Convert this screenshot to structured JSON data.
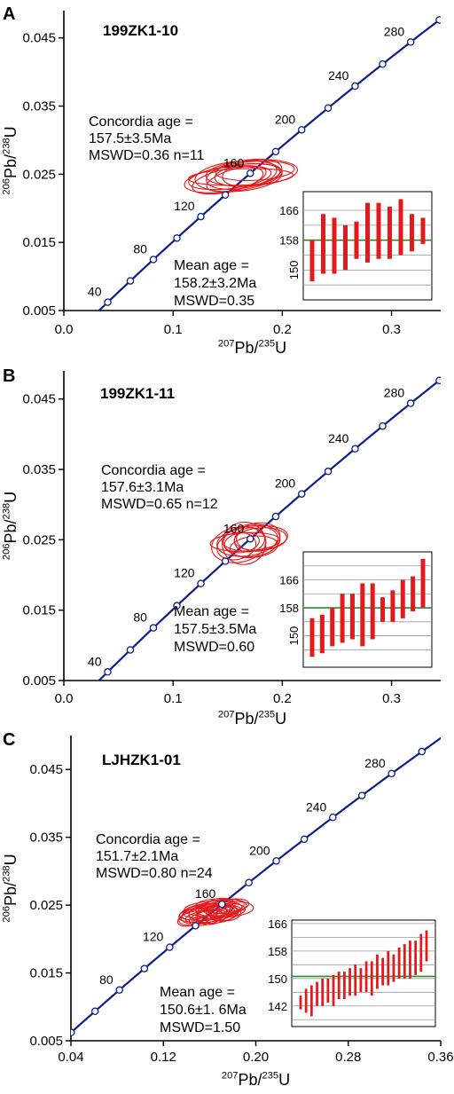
{
  "colors": {
    "concordia": "#0a1e8c",
    "ellipse": "#e31a1c",
    "bar": "#e31a1c",
    "mean_line": "#2e8b2e",
    "grid": "#999999",
    "axis": "#000000"
  },
  "panels": [
    {
      "letter": "A",
      "sample": "199ZK1-10",
      "xlabel": "207Pb/235U",
      "ylabel": "206Pb/238U",
      "concordia_text": [
        "Concordia age =",
        "157.5±3.5Ma",
        "MSWD=0.36 n=11"
      ],
      "mean_text": [
        "Mean age =",
        "158.2±3.2Ma",
        "MSWD=0.35"
      ]
    },
    {
      "letter": "B",
      "sample": "199ZK1-11",
      "xlabel": "207Pb/235U",
      "ylabel": "206Pb/238U",
      "concordia_text": [
        "Concordia age =",
        "157.6±3.1Ma",
        "MSWD=0.65 n=12"
      ],
      "mean_text": [
        "Mean age =",
        "157.5±3.5Ma",
        "MSWD=0.60"
      ]
    },
    {
      "letter": "C",
      "sample": "LJHZK1-01",
      "xlabel": "207Pb/235U",
      "ylabel": "206Pb/238U",
      "concordia_text": [
        "Concordia age =",
        "151.7±2.1Ma",
        "MSWD=0.80 n=24"
      ],
      "mean_text": [
        "Mean age =",
        "150.6±1. 6Ma",
        "MSWD=1.50"
      ]
    }
  ],
  "chart_data": [
    {
      "type": "scatter",
      "title": "199ZK1-10",
      "xlabel": "207Pb/235U",
      "ylabel": "206Pb/238U",
      "xlim": [
        0.0,
        0.345
      ],
      "ylim": [
        0.005,
        0.049
      ],
      "xticks": [
        0.0,
        0.1,
        0.2,
        0.3
      ],
      "xtick_labels": [
        "0.0",
        "0.1",
        "0.2",
        "0.3"
      ],
      "yticks": [
        0.005,
        0.015,
        0.025,
        0.035,
        0.045
      ],
      "ytick_labels": [
        "0.005",
        "0.015",
        "0.025",
        "0.035",
        "0.045"
      ],
      "concordia_age_labels": [
        40,
        80,
        120,
        160,
        200,
        240,
        280
      ],
      "concordia_age_markers": [
        40,
        60,
        80,
        100,
        120,
        140,
        160,
        180,
        200,
        220,
        240,
        260,
        280,
        300
      ],
      "ellipses": [
        {
          "x": 0.155,
          "y": 0.0244,
          "rx": 0.045,
          "ry": 0.0019,
          "angle": 8
        },
        {
          "x": 0.16,
          "y": 0.0247,
          "rx": 0.04,
          "ry": 0.0022,
          "angle": 5
        },
        {
          "x": 0.165,
          "y": 0.025,
          "rx": 0.035,
          "ry": 0.002,
          "angle": 10
        },
        {
          "x": 0.172,
          "y": 0.0252,
          "rx": 0.042,
          "ry": 0.0019,
          "angle": 4
        },
        {
          "x": 0.15,
          "y": 0.0241,
          "rx": 0.033,
          "ry": 0.0017,
          "angle": 12
        },
        {
          "x": 0.168,
          "y": 0.0249,
          "rx": 0.03,
          "ry": 0.0016,
          "angle": 6
        },
        {
          "x": 0.158,
          "y": 0.0243,
          "rx": 0.028,
          "ry": 0.0015,
          "angle": 15
        },
        {
          "x": 0.175,
          "y": 0.0255,
          "rx": 0.036,
          "ry": 0.0014,
          "angle": 3
        },
        {
          "x": 0.162,
          "y": 0.0246,
          "rx": 0.048,
          "ry": 0.0012,
          "angle": 2
        },
        {
          "x": 0.17,
          "y": 0.0251,
          "rx": 0.025,
          "ry": 0.0018,
          "angle": 9
        },
        {
          "x": 0.152,
          "y": 0.0245,
          "rx": 0.038,
          "ry": 0.0016,
          "angle": 7
        }
      ],
      "inset": {
        "type": "bar",
        "ylim": [
          142,
          171
        ],
        "yticks": [
          150,
          158,
          166
        ],
        "mean": 158,
        "grid": [
          146,
          150,
          154,
          158,
          162,
          166
        ],
        "bars": [
          [
            147,
            158
          ],
          [
            149,
            165
          ],
          [
            149,
            164
          ],
          [
            150,
            162
          ],
          [
            153,
            163
          ],
          [
            152,
            168
          ],
          [
            153,
            168
          ],
          [
            153,
            167
          ],
          [
            154,
            169
          ],
          [
            155,
            165
          ],
          [
            157,
            164
          ]
        ]
      }
    },
    {
      "type": "scatter",
      "title": "199ZK1-11",
      "xlabel": "207Pb/235U",
      "ylabel": "206Pb/238U",
      "xlim": [
        0.0,
        0.345
      ],
      "ylim": [
        0.005,
        0.049
      ],
      "xticks": [
        0.0,
        0.1,
        0.2,
        0.3
      ],
      "xtick_labels": [
        "0.0",
        "0.1",
        "0.2",
        "0.3"
      ],
      "yticks": [
        0.005,
        0.015,
        0.025,
        0.035,
        0.045
      ],
      "ytick_labels": [
        "0.005",
        "0.015",
        "0.025",
        "0.035",
        "0.045"
      ],
      "concordia_age_labels": [
        40,
        80,
        120,
        160,
        200,
        240,
        280
      ],
      "concordia_age_markers": [
        40,
        60,
        80,
        100,
        120,
        140,
        160,
        180,
        200,
        220,
        240,
        260,
        280,
        300
      ],
      "ellipses": [
        {
          "x": 0.16,
          "y": 0.0243,
          "rx": 0.025,
          "ry": 0.0025,
          "angle": 10
        },
        {
          "x": 0.168,
          "y": 0.0248,
          "rx": 0.028,
          "ry": 0.0021,
          "angle": 8
        },
        {
          "x": 0.175,
          "y": 0.0252,
          "rx": 0.03,
          "ry": 0.0018,
          "angle": 5
        },
        {
          "x": 0.165,
          "y": 0.0245,
          "rx": 0.02,
          "ry": 0.003,
          "angle": 15
        },
        {
          "x": 0.18,
          "y": 0.0251,
          "rx": 0.024,
          "ry": 0.0016,
          "angle": 4
        },
        {
          "x": 0.158,
          "y": 0.0241,
          "rx": 0.018,
          "ry": 0.0019,
          "angle": 12
        },
        {
          "x": 0.172,
          "y": 0.0249,
          "rx": 0.026,
          "ry": 0.0023,
          "angle": 6
        },
        {
          "x": 0.163,
          "y": 0.0246,
          "rx": 0.016,
          "ry": 0.0014,
          "angle": 9
        },
        {
          "x": 0.178,
          "y": 0.0254,
          "rx": 0.02,
          "ry": 0.002,
          "angle": 7
        },
        {
          "x": 0.166,
          "y": 0.0247,
          "rx": 0.032,
          "ry": 0.0013,
          "angle": 3
        },
        {
          "x": 0.17,
          "y": 0.025,
          "rx": 0.014,
          "ry": 0.0017,
          "angle": 11
        },
        {
          "x": 0.174,
          "y": 0.024,
          "rx": 0.022,
          "ry": 0.0015,
          "angle": 6
        }
      ],
      "inset": {
        "type": "bar",
        "ylim": [
          141,
          174
        ],
        "yticks": [
          150,
          158,
          166
        ],
        "mean": 158,
        "grid": [
          146,
          150,
          154,
          158,
          162,
          166,
          170
        ],
        "bars": [
          [
            144,
            155
          ],
          [
            145,
            156
          ],
          [
            147,
            158
          ],
          [
            148,
            162
          ],
          [
            149,
            162
          ],
          [
            147,
            165
          ],
          [
            149,
            165
          ],
          [
            154,
            161
          ],
          [
            154,
            163
          ],
          [
            155,
            166
          ],
          [
            157,
            167
          ],
          [
            158,
            172
          ]
        ]
      }
    },
    {
      "type": "scatter",
      "title": "LJHZK1-01",
      "xlabel": "207Pb/235U",
      "ylabel": "206Pb/238U",
      "xlim": [
        0.04,
        0.36
      ],
      "ylim": [
        0.005,
        0.05
      ],
      "xticks": [
        0.04,
        0.12,
        0.2,
        0.28,
        0.36
      ],
      "xtick_labels": [
        "0.04",
        "0.12",
        "0.20",
        "0.28",
        "0.36"
      ],
      "yticks": [
        0.005,
        0.015,
        0.025,
        0.035,
        0.045
      ],
      "ytick_labels": [
        "0.005",
        "0.015",
        "0.025",
        "0.035",
        "0.045"
      ],
      "concordia_age_labels": [
        80,
        120,
        160,
        200,
        240,
        280
      ],
      "concordia_age_markers": [
        40,
        60,
        80,
        100,
        120,
        140,
        160,
        180,
        200,
        220,
        240,
        260,
        280,
        300
      ],
      "ellipses": [
        {
          "x": 0.155,
          "y": 0.0236,
          "rx": 0.02,
          "ry": 0.0013,
          "angle": 10
        },
        {
          "x": 0.16,
          "y": 0.024,
          "rx": 0.018,
          "ry": 0.0012,
          "angle": 8
        },
        {
          "x": 0.165,
          "y": 0.0243,
          "rx": 0.016,
          "ry": 0.0011,
          "angle": 12
        },
        {
          "x": 0.17,
          "y": 0.0246,
          "rx": 0.022,
          "ry": 0.0012,
          "angle": 6
        },
        {
          "x": 0.175,
          "y": 0.0248,
          "rx": 0.015,
          "ry": 0.001,
          "angle": 9
        },
        {
          "x": 0.15,
          "y": 0.0233,
          "rx": 0.017,
          "ry": 0.0011,
          "angle": 14
        },
        {
          "x": 0.158,
          "y": 0.0238,
          "rx": 0.024,
          "ry": 0.001,
          "angle": 5
        },
        {
          "x": 0.162,
          "y": 0.0235,
          "rx": 0.014,
          "ry": 0.0013,
          "angle": 11
        },
        {
          "x": 0.168,
          "y": 0.024,
          "rx": 0.019,
          "ry": 0.0009,
          "angle": 7
        },
        {
          "x": 0.178,
          "y": 0.0244,
          "rx": 0.02,
          "ry": 0.0011,
          "angle": 4
        },
        {
          "x": 0.145,
          "y": 0.023,
          "rx": 0.013,
          "ry": 0.001,
          "angle": 15
        },
        {
          "x": 0.153,
          "y": 0.0241,
          "rx": 0.016,
          "ry": 0.0009,
          "angle": 8
        },
        {
          "x": 0.172,
          "y": 0.0239,
          "rx": 0.012,
          "ry": 0.0012,
          "angle": 10
        },
        {
          "x": 0.163,
          "y": 0.0245,
          "rx": 0.025,
          "ry": 0.0011,
          "angle": 3
        },
        {
          "x": 0.157,
          "y": 0.0231,
          "rx": 0.015,
          "ry": 0.001,
          "angle": 12
        },
        {
          "x": 0.18,
          "y": 0.025,
          "rx": 0.014,
          "ry": 0.0009,
          "angle": 6
        },
        {
          "x": 0.167,
          "y": 0.0236,
          "rx": 0.018,
          "ry": 0.0012,
          "angle": 9
        },
        {
          "x": 0.148,
          "y": 0.0237,
          "rx": 0.012,
          "ry": 0.0008,
          "angle": 10
        },
        {
          "x": 0.174,
          "y": 0.0242,
          "rx": 0.017,
          "ry": 0.001,
          "angle": 5
        },
        {
          "x": 0.16,
          "y": 0.0234,
          "rx": 0.021,
          "ry": 0.0009,
          "angle": 8
        },
        {
          "x": 0.169,
          "y": 0.0249,
          "rx": 0.013,
          "ry": 0.0011,
          "angle": 7
        },
        {
          "x": 0.152,
          "y": 0.0239,
          "rx": 0.019,
          "ry": 0.0012,
          "angle": 13
        },
        {
          "x": 0.176,
          "y": 0.0237,
          "rx": 0.011,
          "ry": 0.001,
          "angle": 6
        },
        {
          "x": 0.164,
          "y": 0.0251,
          "rx": 0.016,
          "ry": 0.0008,
          "angle": 4
        }
      ],
      "inset": {
        "type": "bar",
        "ylim": [
          136,
          167
        ],
        "yticks": [
          142,
          150,
          158,
          166
        ],
        "mean": 150.6,
        "grid": [
          138,
          142,
          146,
          150,
          154,
          158,
          162,
          166
        ],
        "bars": [
          [
            141,
            145
          ],
          [
            140,
            147
          ],
          [
            139,
            148
          ],
          [
            142,
            149
          ],
          [
            142,
            150
          ],
          [
            143,
            150
          ],
          [
            142,
            151
          ],
          [
            144,
            152
          ],
          [
            144,
            152
          ],
          [
            145,
            153
          ],
          [
            145,
            154
          ],
          [
            146,
            153
          ],
          [
            146,
            155
          ],
          [
            145,
            155
          ],
          [
            147,
            157
          ],
          [
            148,
            156
          ],
          [
            148,
            158
          ],
          [
            149,
            157
          ],
          [
            150,
            159
          ],
          [
            150,
            160
          ],
          [
            150,
            161
          ],
          [
            151,
            161
          ],
          [
            152,
            163
          ],
          [
            155,
            164
          ]
        ]
      }
    }
  ]
}
